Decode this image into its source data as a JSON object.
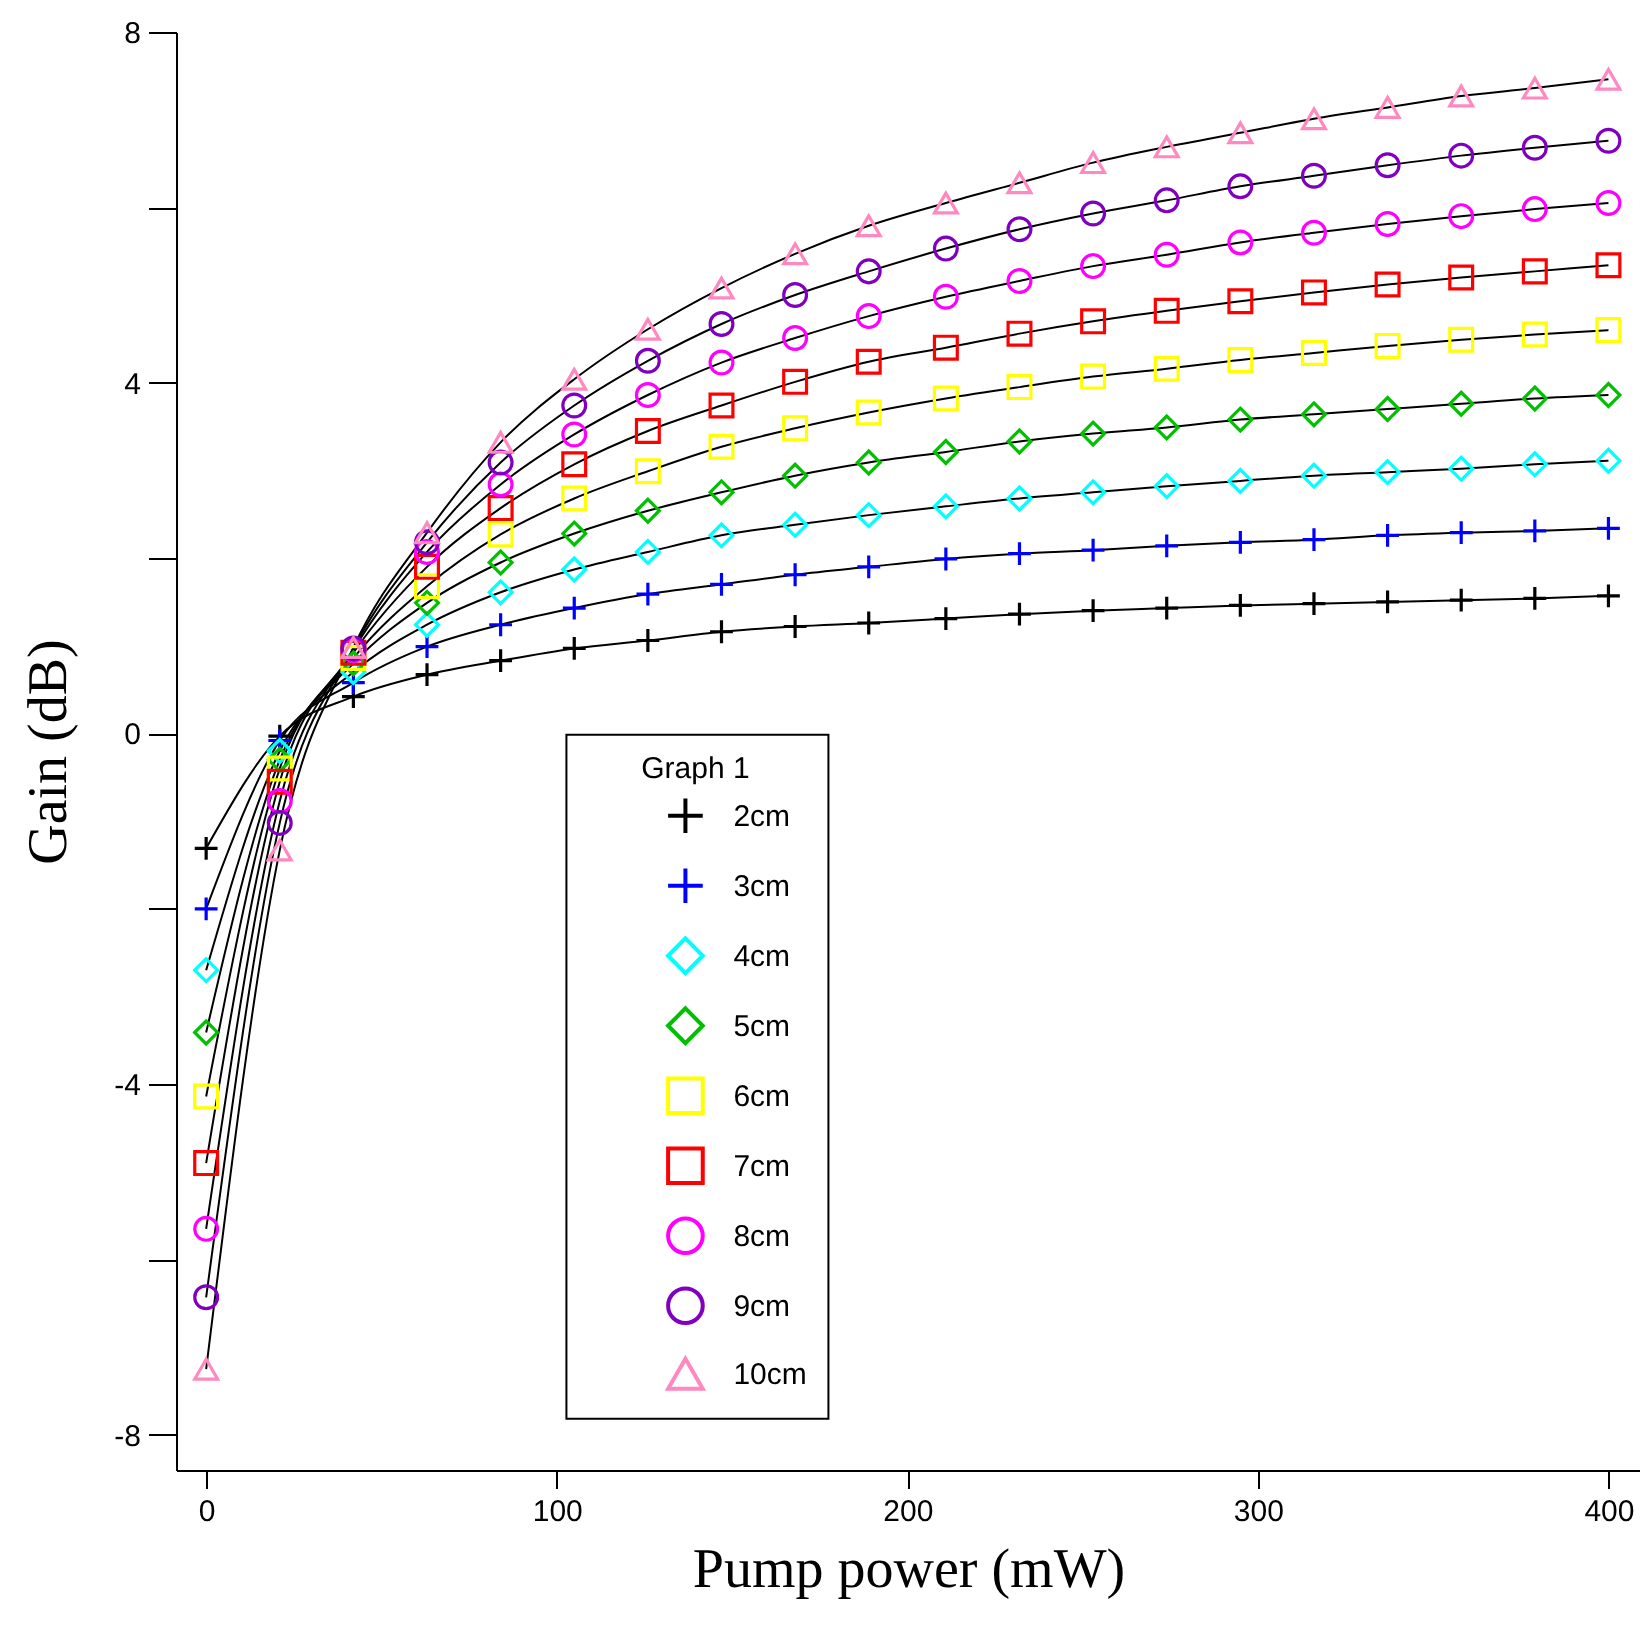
{
  "chart_data": {
    "type": "line",
    "xlabel": "Pump power (mW)",
    "ylabel": "Gain (dB)",
    "legend_title": "Graph 1",
    "legend": "bottom",
    "grid": false,
    "xlim": [
      -8.6,
      409
    ],
    "xticks": [
      0,
      100,
      200,
      300,
      400
    ],
    "ylim": [
      -8.4,
      8
    ],
    "yticks": [
      -8,
      {
        "value": -6,
        "label": null
      },
      -4,
      {
        "value": -2,
        "label": null
      },
      0,
      {
        "value": 2,
        "label": null
      },
      4,
      {
        "value": 6,
        "label": null
      },
      8
    ],
    "x": [
      0,
      21,
      42,
      63,
      84,
      105,
      126,
      147,
      168,
      189,
      211,
      232,
      253,
      274,
      295,
      316,
      337,
      358,
      379,
      400
    ],
    "series": [
      {
        "name": "2cm",
        "color": "#000000",
        "marker": "cross",
        "values": [
          -1.31,
          -0.03,
          0.42,
          0.67,
          0.83,
          0.97,
          1.06,
          1.16,
          1.22,
          1.26,
          1.31,
          1.36,
          1.4,
          1.43,
          1.46,
          1.48,
          1.5,
          1.52,
          1.54,
          1.57
        ]
      },
      {
        "name": "3cm",
        "color": "#0000ff",
        "marker": "cross",
        "values": [
          -2.0,
          -0.08,
          0.58,
          0.99,
          1.24,
          1.43,
          1.59,
          1.7,
          1.81,
          1.9,
          1.99,
          2.05,
          2.09,
          2.14,
          2.18,
          2.21,
          2.26,
          2.29,
          2.31,
          2.34
        ]
      },
      {
        "name": "4cm",
        "color": "#00ffff",
        "marker": "diamond",
        "values": [
          -2.7,
          -0.2,
          0.7,
          1.24,
          1.61,
          1.87,
          2.07,
          2.26,
          2.38,
          2.49,
          2.59,
          2.68,
          2.75,
          2.82,
          2.88,
          2.94,
          2.98,
          3.02,
          3.07,
          3.11
        ]
      },
      {
        "name": "5cm",
        "color": "#00c000",
        "marker": "diamond",
        "values": [
          -3.41,
          -0.3,
          0.8,
          1.49,
          1.95,
          2.28,
          2.54,
          2.75,
          2.94,
          3.09,
          3.21,
          3.33,
          3.42,
          3.49,
          3.58,
          3.64,
          3.7,
          3.76,
          3.82,
          3.86
        ]
      },
      {
        "name": "6cm",
        "color": "#ffff00",
        "marker": "square",
        "values": [
          -4.14,
          -0.4,
          0.86,
          1.68,
          2.27,
          2.68,
          2.99,
          3.27,
          3.48,
          3.66,
          3.82,
          3.95,
          4.07,
          4.16,
          4.26,
          4.34,
          4.42,
          4.49,
          4.55,
          4.6
        ]
      },
      {
        "name": "7cm",
        "color": "#ff0000",
        "marker": "square",
        "values": [
          -4.9,
          -0.55,
          0.92,
          1.9,
          2.57,
          3.07,
          3.45,
          3.74,
          4.01,
          4.24,
          4.4,
          4.56,
          4.7,
          4.82,
          4.93,
          5.03,
          5.12,
          5.2,
          5.27,
          5.34
        ]
      },
      {
        "name": "8cm",
        "color": "#ff00ff",
        "marker": "circle",
        "values": [
          -5.65,
          -0.77,
          0.95,
          2.07,
          2.84,
          3.41,
          3.86,
          4.23,
          4.51,
          4.76,
          4.98,
          5.16,
          5.33,
          5.46,
          5.6,
          5.71,
          5.81,
          5.9,
          5.98,
          6.05
        ]
      },
      {
        "name": "9cm",
        "color": "#8000c0",
        "marker": "circle",
        "values": [
          -6.43,
          -1.02,
          0.97,
          2.18,
          3.09,
          3.74,
          4.25,
          4.67,
          5.0,
          5.27,
          5.53,
          5.75,
          5.93,
          6.08,
          6.24,
          6.36,
          6.48,
          6.59,
          6.68,
          6.76
        ]
      },
      {
        "name": "10cm",
        "color": "#ff88c0",
        "marker": "triangle",
        "values": [
          -7.25,
          -1.33,
          0.98,
          2.29,
          3.32,
          4.04,
          4.61,
          5.08,
          5.47,
          5.79,
          6.05,
          6.28,
          6.51,
          6.69,
          6.85,
          7.01,
          7.14,
          7.27,
          7.36,
          7.46
        ]
      }
    ]
  }
}
